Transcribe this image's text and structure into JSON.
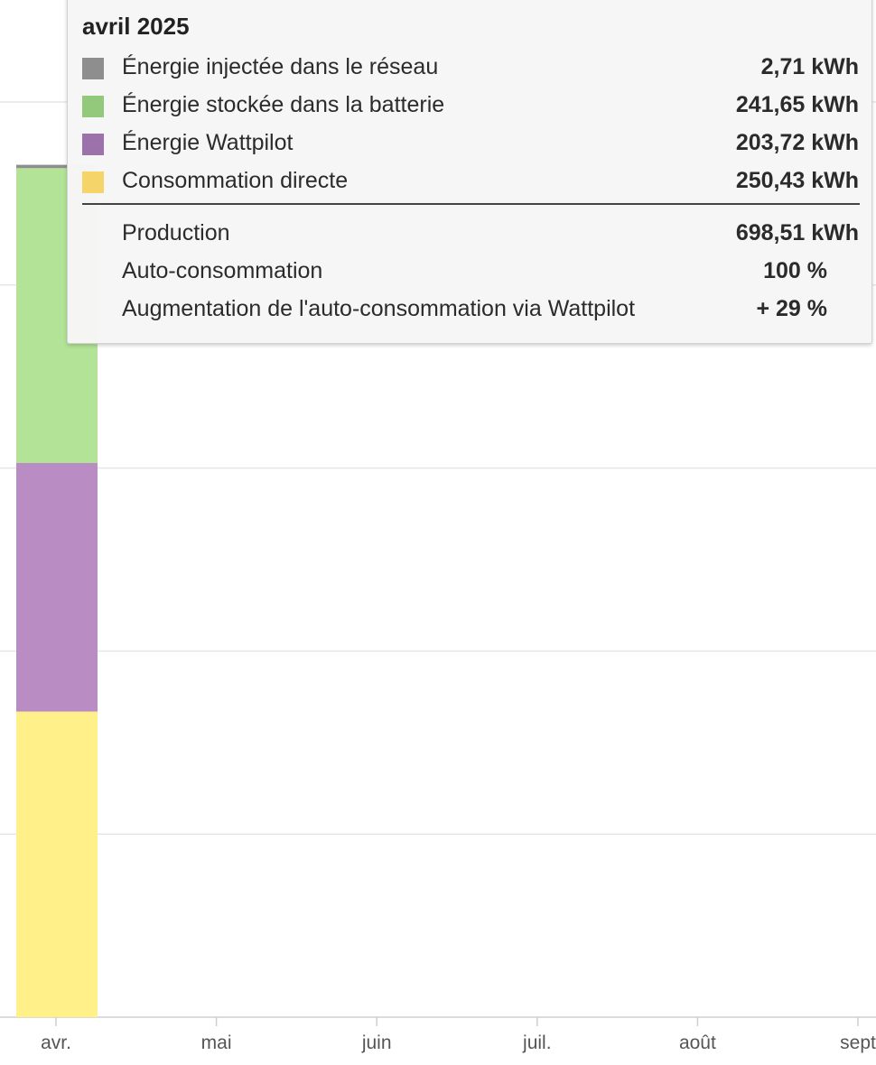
{
  "chart_data": {
    "type": "bar",
    "stacked": true,
    "categories": [
      "avr.",
      "mai",
      "juin",
      "juil.",
      "août",
      "sept"
    ],
    "series": [
      {
        "name": "Consommation directe",
        "color": "#fff08a",
        "values": [
          250.43,
          0,
          0,
          0,
          0,
          0
        ]
      },
      {
        "name": "Énergie Wattpilot",
        "color": "#b98cc4",
        "values": [
          203.72,
          0,
          0,
          0,
          0,
          0
        ]
      },
      {
        "name": "Énergie stockée dans la batterie",
        "color": "#b2e397",
        "values": [
          241.65,
          0,
          0,
          0,
          0,
          0
        ]
      },
      {
        "name": "Énergie injectée dans le réseau",
        "color": "#8e8e8e",
        "values": [
          2.71,
          0,
          0,
          0,
          0,
          0
        ]
      }
    ],
    "unit": "kWh",
    "ylim": [
      0,
      750
    ],
    "grid": true
  },
  "tooltip": {
    "title": "avril 2025",
    "rows": [
      {
        "label": "Énergie injectée dans le réseau",
        "value": "2,71 kWh",
        "color": "#8e8e8e"
      },
      {
        "label": "Énergie stockée dans la batterie",
        "value": "241,65 kWh",
        "color": "#93c97a"
      },
      {
        "label": "Énergie Wattpilot",
        "value": "203,72 kWh",
        "color": "#9d72ab"
      },
      {
        "label": "Consommation directe",
        "value": "250,43 kWh",
        "color": "#f5d56a"
      }
    ],
    "summary": [
      {
        "label": "Production",
        "value": "698,51 kWh"
      },
      {
        "label": "Auto-consommation",
        "value": "100 %"
      },
      {
        "label": "Augmentation de l'auto-consommation via Wattpilot",
        "value": "+ 29 %"
      }
    ]
  }
}
